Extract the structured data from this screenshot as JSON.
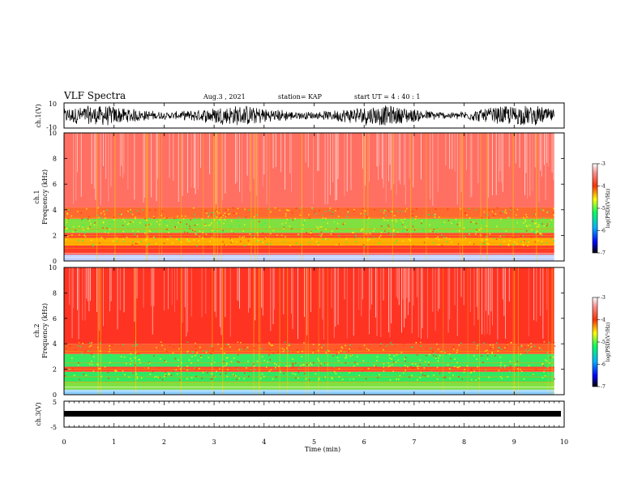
{
  "header": {
    "title": "VLF Spectra",
    "date": "Aug.3  , 2021",
    "station": "station= KAP",
    "start_ut": "start  UT  =   4 : 40 : 1"
  },
  "chart_data": [
    {
      "id": "ch1-waveform",
      "type": "line",
      "ylabel": "ch.1(V)",
      "ylim": [
        -10,
        10
      ],
      "yticks": [
        "10",
        "-10"
      ],
      "xlim": [
        0,
        10
      ],
      "x_extent": [
        0,
        9.8
      ],
      "series": [
        {
          "values": "dense noisy waveform spanning roughly -7 to +7 V around 0"
        }
      ]
    },
    {
      "id": "ch1-spectrogram",
      "type": "heatmap",
      "ylabel": "ch.1",
      "ylabel2": "Frequency  (kHz)",
      "ylim": [
        0,
        10
      ],
      "yticks": [
        "0",
        "2",
        "4",
        "6",
        "8",
        "10"
      ],
      "xlim": [
        0,
        10
      ],
      "x_extent": [
        0,
        9.8
      ],
      "bands": [
        {
          "from": 0,
          "to": 0.5,
          "color": "#c0d0ff"
        },
        {
          "from": 0.5,
          "to": 1.2,
          "color": "#ff3b28"
        },
        {
          "from": 1.2,
          "to": 1.8,
          "color": "#ffb000"
        },
        {
          "from": 1.8,
          "to": 2.2,
          "color": "#ff4a2a"
        },
        {
          "from": 2.2,
          "to": 3.3,
          "color": "#7fe040"
        },
        {
          "from": 3.3,
          "to": 4.2,
          "color": "#ff6a30"
        },
        {
          "from": 4.2,
          "to": 10,
          "color": "#ff6f62"
        }
      ],
      "colorbar": {
        "label": "log(PSD)(V²/Hz)",
        "ticks": [
          "-3",
          "-4",
          "-5",
          "-6",
          "-7"
        ],
        "range": [
          -7,
          -3
        ]
      }
    },
    {
      "id": "ch2-spectrogram",
      "type": "heatmap",
      "ylabel": "ch.2",
      "ylabel2": "Frequency  (kHz)",
      "ylim": [
        0,
        10
      ],
      "yticks": [
        "0",
        "2",
        "4",
        "6",
        "8",
        "10"
      ],
      "xlim": [
        0,
        10
      ],
      "x_extent": [
        0,
        9.8
      ],
      "bands": [
        {
          "from": 0,
          "to": 0.4,
          "color": "#8fd0ff"
        },
        {
          "from": 0.4,
          "to": 1.0,
          "color": "#7fe040"
        },
        {
          "from": 1.0,
          "to": 1.8,
          "color": "#30e860"
        },
        {
          "from": 1.8,
          "to": 2.2,
          "color": "#ff4a2a"
        },
        {
          "from": 2.2,
          "to": 3.2,
          "color": "#38e860"
        },
        {
          "from": 3.2,
          "to": 4.0,
          "color": "#ff5a28"
        },
        {
          "from": 4.0,
          "to": 10,
          "color": "#ff3322"
        }
      ],
      "colorbar": {
        "label": "log(PSD)(V²/Hz)",
        "ticks": [
          "-3",
          "-4",
          "-5",
          "-6",
          "-7"
        ],
        "range": [
          -7,
          -3
        ]
      }
    },
    {
      "id": "ch3-waveform",
      "type": "line",
      "ylabel": "ch.3(V)",
      "ylim": [
        -5,
        5
      ],
      "yticks": [
        "5",
        "-5"
      ],
      "xlim": [
        0,
        10
      ],
      "x_extent": [
        0,
        9.8
      ],
      "series": [
        {
          "values": "constant thick trace at about 0 V"
        }
      ],
      "xlabel": "Time  (min)",
      "xticks": [
        "0",
        "1",
        "2",
        "3",
        "4",
        "5",
        "6",
        "7",
        "8",
        "9",
        "10"
      ]
    }
  ],
  "colors": {
    "colormap": [
      "#000000",
      "#0000ff",
      "#00a0ff",
      "#00ff80",
      "#80ff00",
      "#ffff00",
      "#ff8000",
      "#ff0000",
      "#ffffff"
    ]
  }
}
